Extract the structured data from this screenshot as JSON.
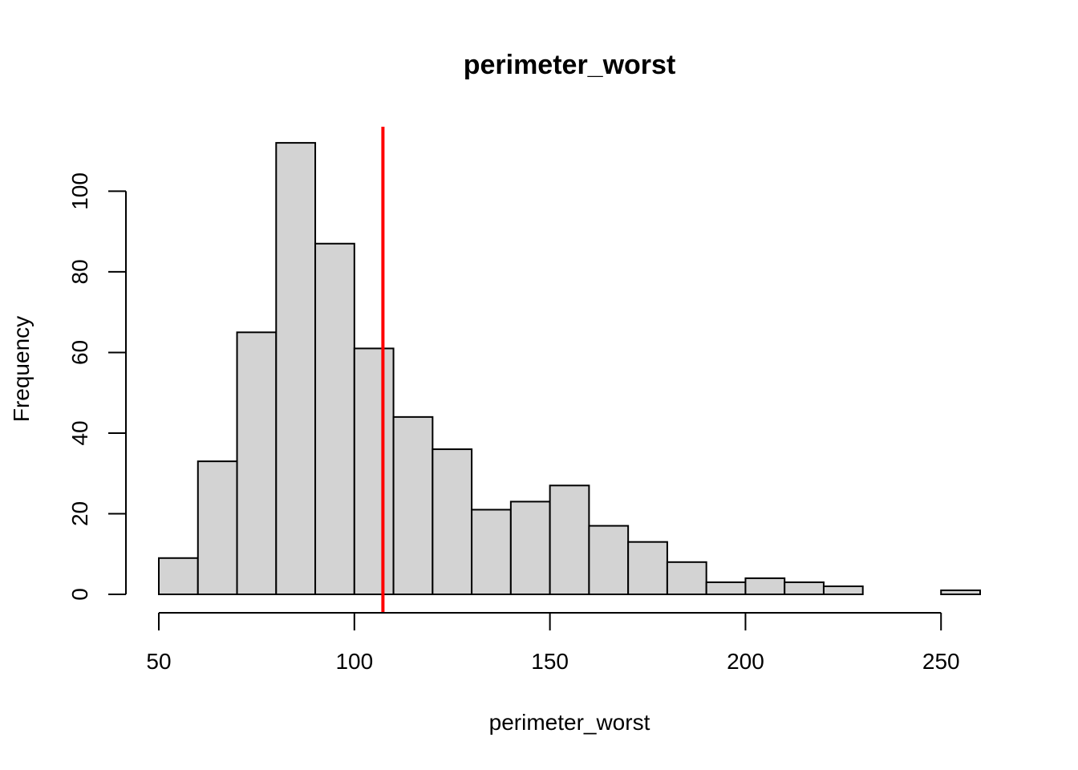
{
  "chart_data": {
    "type": "histogram",
    "title": "perimeter_worst",
    "xlabel": "perimeter_worst",
    "ylabel": "Frequency",
    "bin_width": 10,
    "bin_edges": [
      50,
      60,
      70,
      80,
      90,
      100,
      110,
      120,
      130,
      140,
      150,
      160,
      170,
      180,
      190,
      200,
      210,
      220,
      230,
      240,
      250,
      260
    ],
    "values": [
      9,
      33,
      65,
      112,
      87,
      61,
      44,
      36,
      21,
      23,
      27,
      17,
      13,
      8,
      3,
      4,
      3,
      2,
      0,
      0,
      1
    ],
    "xlim": [
      50,
      260
    ],
    "ylim": [
      0,
      116
    ],
    "x_ticks": [
      50,
      100,
      150,
      200,
      250
    ],
    "y_ticks": [
      0,
      20,
      40,
      60,
      80,
      100
    ],
    "reference_line": {
      "x": 107.3,
      "color": "#ff0000"
    },
    "bar_fill": "#d3d3d3",
    "bar_stroke": "#000000",
    "grid": false,
    "legend": "none"
  }
}
